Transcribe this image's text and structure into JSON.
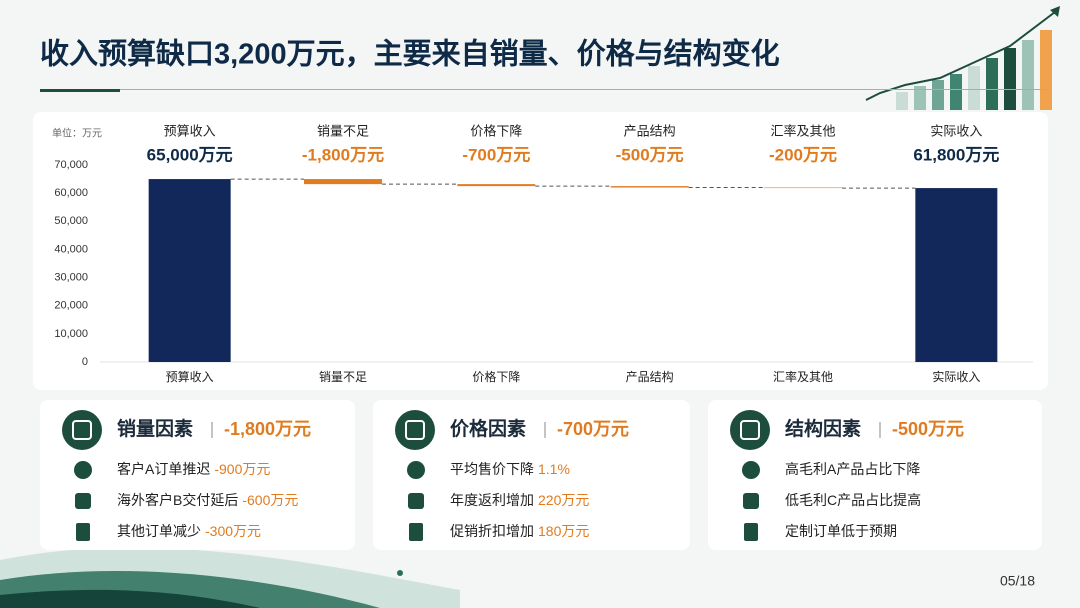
{
  "header": {
    "title": "收入预算缺口3,200万元，主要来自销量、价格与结构变化"
  },
  "chart_data": {
    "type": "waterfall",
    "unit_label": "单位：万元",
    "categories": [
      "预算收入",
      "销量不足",
      "价格下降",
      "产品结构",
      "汇率及其他",
      "实际收入"
    ],
    "values": [
      65000,
      -1800,
      -700,
      -500,
      -200,
      61800
    ],
    "value_labels": [
      "65,000万元",
      "-1,800万元",
      "-700万元",
      "-500万元",
      "-200万元",
      "61,800万元"
    ],
    "colors": [
      "#13285a",
      "#e07b1f",
      "#e07b1f",
      "#e07b1f",
      "#e07b1f",
      "#13285a"
    ],
    "ylim": [
      0,
      70000
    ],
    "yticks": [
      0,
      {
        "value": 10000,
        "label": "10,000"
      },
      {
        "value": 20000,
        "label": "20,000"
      },
      {
        "value": 30000,
        "label": "30,000"
      },
      {
        "value": 40000,
        "label": "40,000"
      },
      {
        "value": 50000,
        "label": "50,000"
      },
      {
        "value": 60000,
        "label": "60,000"
      },
      {
        "value": 70000,
        "label": "70,000"
      }
    ],
    "grid": false
  },
  "cards": [
    {
      "title": "销量因素",
      "value": "-1,800万元",
      "items": [
        {
          "text": "客户A订单推迟",
          "amount": "-900万元"
        },
        {
          "text": "海外客户B交付延后",
          "amount": "-600万元"
        },
        {
          "text": "其他订单减少",
          "amount": "-300万元"
        }
      ]
    },
    {
      "title": "价格因素",
      "value": "-700万元",
      "items": [
        {
          "text": "平均售价下降",
          "amount": "1.1%"
        },
        {
          "text": "年度返利增加",
          "amount": "220万元"
        },
        {
          "text": "促销折扣增加",
          "amount": "180万元"
        }
      ]
    },
    {
      "title": "结构因素",
      "value": "-500万元",
      "items": [
        {
          "text": "高毛利A产品占比下降"
        },
        {
          "text": "低毛利C产品占比提高"
        },
        {
          "text": "定制订单低于预期"
        }
      ]
    }
  ],
  "footer": {
    "page": "05/18"
  }
}
